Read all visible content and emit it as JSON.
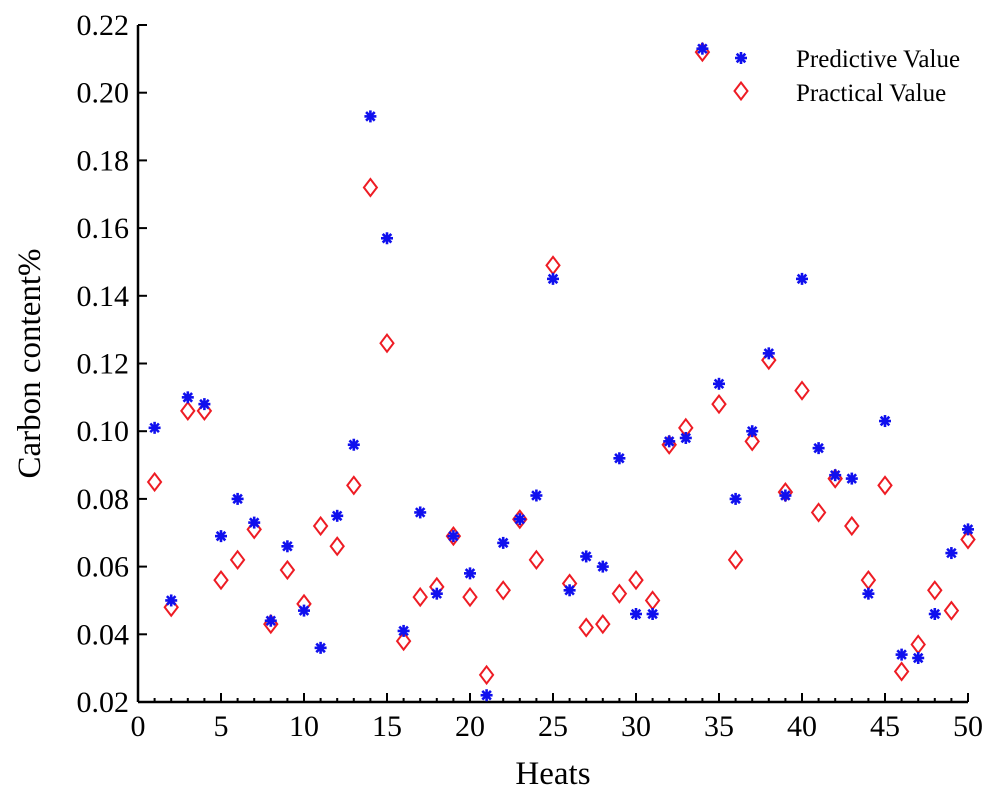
{
  "chart_data": {
    "type": "scatter",
    "xlabel": "Heats",
    "ylabel": "Carbon content%",
    "xlim": [
      0,
      50
    ],
    "ylim": [
      0.02,
      0.22
    ],
    "xticks": [
      0,
      5,
      10,
      15,
      20,
      25,
      30,
      35,
      40,
      45,
      50
    ],
    "yticks": [
      "0.02",
      "0.04",
      "0.06",
      "0.08",
      "0.10",
      "0.12",
      "0.14",
      "0.16",
      "0.18",
      "0.20",
      "0.22"
    ],
    "legend_position": "top-right",
    "grid": false,
    "x": [
      1,
      2,
      3,
      4,
      5,
      6,
      7,
      8,
      9,
      10,
      11,
      12,
      13,
      14,
      15,
      16,
      17,
      18,
      19,
      20,
      21,
      22,
      23,
      24,
      25,
      26,
      27,
      28,
      29,
      30,
      31,
      32,
      33,
      34,
      35,
      36,
      37,
      38,
      39,
      40,
      41,
      42,
      43,
      44,
      45,
      46,
      47,
      48,
      49,
      50
    ],
    "series": [
      {
        "name": "Predictive Value",
        "marker": "asterisk",
        "color": "#1010ee",
        "values": [
          0.101,
          0.05,
          0.11,
          0.108,
          0.069,
          0.08,
          0.073,
          0.044,
          0.066,
          0.047,
          0.036,
          0.075,
          0.096,
          0.193,
          0.157,
          0.041,
          0.076,
          0.052,
          0.069,
          0.058,
          0.022,
          0.067,
          0.074,
          0.081,
          0.145,
          0.053,
          0.063,
          0.06,
          0.092,
          0.046,
          0.046,
          0.097,
          0.098,
          0.213,
          0.114,
          0.08,
          0.1,
          0.123,
          0.081,
          0.145,
          0.095,
          0.087,
          0.086,
          0.052,
          0.103,
          0.034,
          0.033,
          0.046,
          0.064,
          0.071
        ]
      },
      {
        "name": "Practical Value",
        "marker": "diamond",
        "color": "#ee1c24",
        "values": [
          0.085,
          0.048,
          0.106,
          0.106,
          0.056,
          0.062,
          0.071,
          0.043,
          0.059,
          0.049,
          0.072,
          0.066,
          0.084,
          0.172,
          0.126,
          0.038,
          0.051,
          0.054,
          0.069,
          0.051,
          0.028,
          0.053,
          0.074,
          0.062,
          0.149,
          0.055,
          0.042,
          0.043,
          0.052,
          0.056,
          0.05,
          0.096,
          0.101,
          0.212,
          0.108,
          0.062,
          0.097,
          0.121,
          0.082,
          0.112,
          0.076,
          0.086,
          0.072,
          0.056,
          0.084,
          0.029,
          0.037,
          0.053,
          0.047,
          0.068
        ]
      }
    ]
  }
}
